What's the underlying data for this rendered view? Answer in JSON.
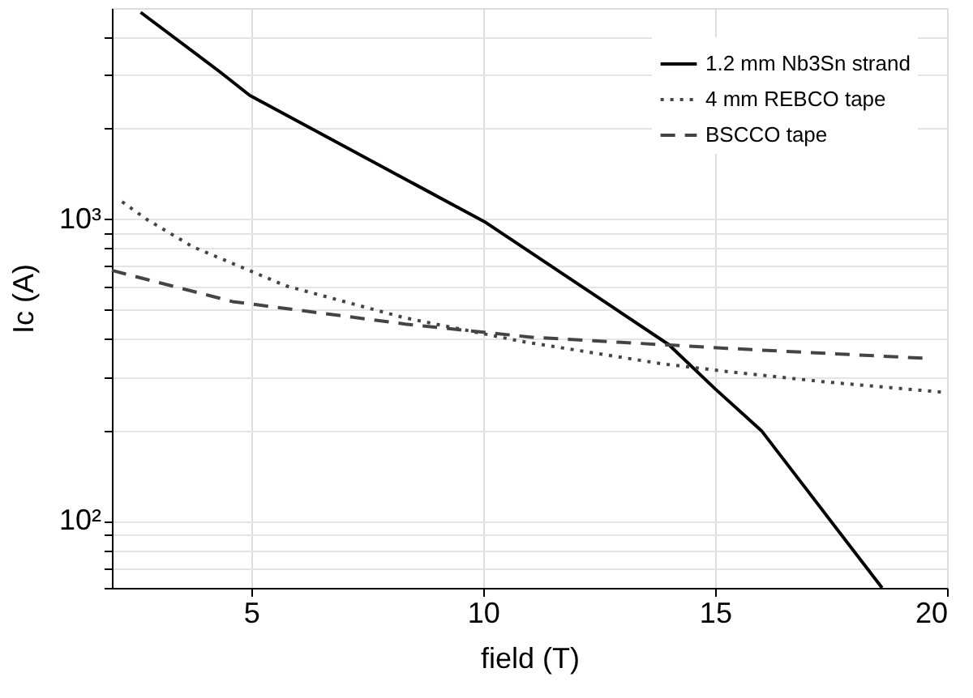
{
  "chart_data": {
    "type": "line",
    "xlabel": "field (T)",
    "ylabel": "Ic (A)",
    "xlim": [
      2,
      20
    ],
    "xticks": [
      5,
      10,
      15,
      20
    ],
    "ylim": [
      60,
      5000
    ],
    "yticks": [
      {
        "value": 60,
        "label": null
      },
      {
        "value": 70,
        "label": null
      },
      {
        "value": 80,
        "label": null
      },
      {
        "value": 90,
        "label": null
      },
      {
        "value": 100,
        "label": "10²"
      },
      {
        "value": 200,
        "label": null
      },
      {
        "value": 300,
        "label": null
      },
      {
        "value": 400,
        "label": null
      },
      {
        "value": 500,
        "label": null
      },
      {
        "value": 600,
        "label": null
      },
      {
        "value": 700,
        "label": null
      },
      {
        "value": 800,
        "label": null
      },
      {
        "value": 900,
        "label": null
      },
      {
        "value": 1000,
        "label": "10³"
      },
      {
        "value": 2000,
        "label": null
      },
      {
        "value": 3000,
        "label": null
      },
      {
        "value": 4000,
        "label": null
      }
    ],
    "log": "y",
    "grid": true,
    "legend": "top right",
    "marker": "none",
    "series": [
      {
        "name": "1.2 mm Nb3Sn strand",
        "color": "#000000",
        "line_style": "solid",
        "x": [
          2.62,
          4.35,
          4.97,
          10.06,
          14.0,
          15.0,
          16.0,
          18.6
        ],
        "values": [
          4840,
          3055,
          2570,
          974,
          384,
          274,
          199,
          60
        ]
      },
      {
        "name": "4 mm REBCO tape",
        "color": "#444444",
        "line_style": "dotted",
        "x": [
          2.22,
          2.74,
          3.74,
          5.75,
          8.28,
          10.8,
          13.83,
          15.38,
          17.35,
          19.9
        ],
        "values": [
          1142,
          1000,
          810,
          601,
          472,
          394,
          332,
          311,
          289,
          267
        ]
      },
      {
        "name": "BSCCO tape",
        "color": "#444444",
        "line_style": "dashed",
        "x": [
          2.0,
          4.6,
          8.32,
          11.05,
          15.26,
          19.47
        ],
        "values": [
          676,
          533,
          449,
          406,
          373,
          346
        ]
      }
    ]
  }
}
